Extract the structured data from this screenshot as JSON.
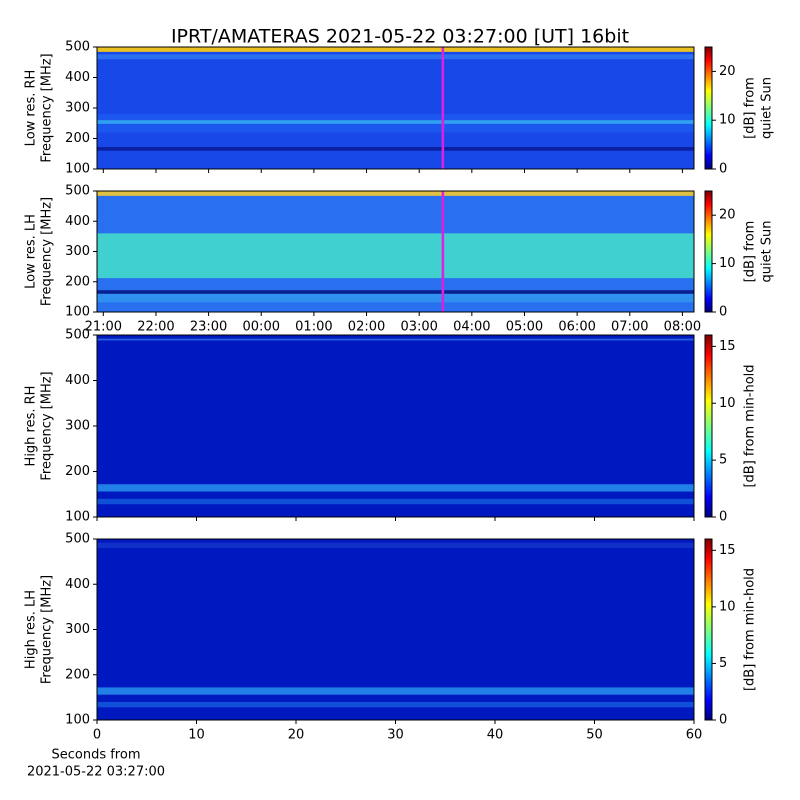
{
  "chart_data": [
    {
      "type": "heatmap",
      "title": "IPRT/AMATERAS 2021-05-22 03:27:00 [UT]   16bit",
      "ylabel": [
        "Low res. RH",
        "Frequency [MHz]"
      ],
      "ylim": [
        100,
        500
      ],
      "yticks": [
        100,
        200,
        300,
        400,
        500
      ],
      "xlim": [
        -0.12,
        11.22
      ],
      "xticks": [
        {
          "value": 0,
          "label": "21:00"
        },
        {
          "value": 1,
          "label": "22:00"
        },
        {
          "value": 2,
          "label": "23:00"
        },
        {
          "value": 3,
          "label": "00:00"
        },
        {
          "value": 4,
          "label": "01:00"
        },
        {
          "value": 5,
          "label": "02:00"
        },
        {
          "value": 6,
          "label": "03:00"
        },
        {
          "value": 7,
          "label": "04:00"
        },
        {
          "value": 8,
          "label": "05:00"
        },
        {
          "value": 9,
          "label": "06:00"
        },
        {
          "value": 10,
          "label": "07:00"
        },
        {
          "value": 11,
          "label": "08:00"
        }
      ],
      "xticklabels": false,
      "cursor": {
        "x": 6.45,
        "color": "#e020e0"
      },
      "colormap": "jet",
      "colorbar": {
        "label": [
          "[dB] from",
          "quiet Sun"
        ],
        "lim": [
          0,
          25
        ],
        "ticks": [
          0,
          10,
          20
        ]
      }
    },
    {
      "type": "heatmap",
      "ylabel": [
        "Low res. LH",
        "Frequency [MHz]"
      ],
      "ylim": [
        100,
        500
      ],
      "yticks": [
        100,
        200,
        300,
        400,
        500
      ],
      "xlim": [
        -0.12,
        11.22
      ],
      "xticks": [
        {
          "value": 0,
          "label": "21:00"
        },
        {
          "value": 1,
          "label": "22:00"
        },
        {
          "value": 2,
          "label": "23:00"
        },
        {
          "value": 3,
          "label": "00:00"
        },
        {
          "value": 4,
          "label": "01:00"
        },
        {
          "value": 5,
          "label": "02:00"
        },
        {
          "value": 6,
          "label": "03:00"
        },
        {
          "value": 7,
          "label": "04:00"
        },
        {
          "value": 8,
          "label": "05:00"
        },
        {
          "value": 9,
          "label": "06:00"
        },
        {
          "value": 10,
          "label": "07:00"
        },
        {
          "value": 11,
          "label": "08:00"
        }
      ],
      "xticklabels": true,
      "cursor": {
        "x": 6.45,
        "color": "#e020e0"
      },
      "colormap": "jet",
      "colorbar": {
        "label": [
          "[dB] from",
          "quiet Sun"
        ],
        "lim": [
          0,
          25
        ],
        "ticks": [
          0,
          10,
          20
        ]
      }
    },
    {
      "type": "heatmap",
      "ylabel": [
        "High res. RH",
        "Frequency [MHz]"
      ],
      "ylim": [
        100,
        500
      ],
      "yticks": [
        100,
        200,
        300,
        400,
        500
      ],
      "xlim": [
        0,
        60
      ],
      "xticks": [
        0,
        10,
        20,
        30,
        40,
        50,
        60
      ],
      "xticklabels": false,
      "colormap": "jet",
      "colorbar": {
        "label": [
          "[dB] from min-hold"
        ],
        "lim": [
          0,
          16
        ],
        "ticks": [
          0,
          5,
          10,
          15
        ]
      }
    },
    {
      "type": "heatmap",
      "ylabel": [
        "High res. LH",
        "Frequency [MHz]"
      ],
      "ylim": [
        100,
        500
      ],
      "yticks": [
        100,
        200,
        300,
        400,
        500
      ],
      "xlim": [
        0,
        60
      ],
      "xticks": [
        0,
        10,
        20,
        30,
        40,
        50,
        60
      ],
      "xticklabels": true,
      "xlabel": [
        "Seconds from",
        "2021-05-22 03:27:00"
      ],
      "colormap": "jet",
      "colorbar": {
        "label": [
          "[dB] from min-hold"
        ],
        "lim": [
          0,
          16
        ],
        "ticks": [
          0,
          5,
          10,
          15
        ]
      }
    }
  ]
}
